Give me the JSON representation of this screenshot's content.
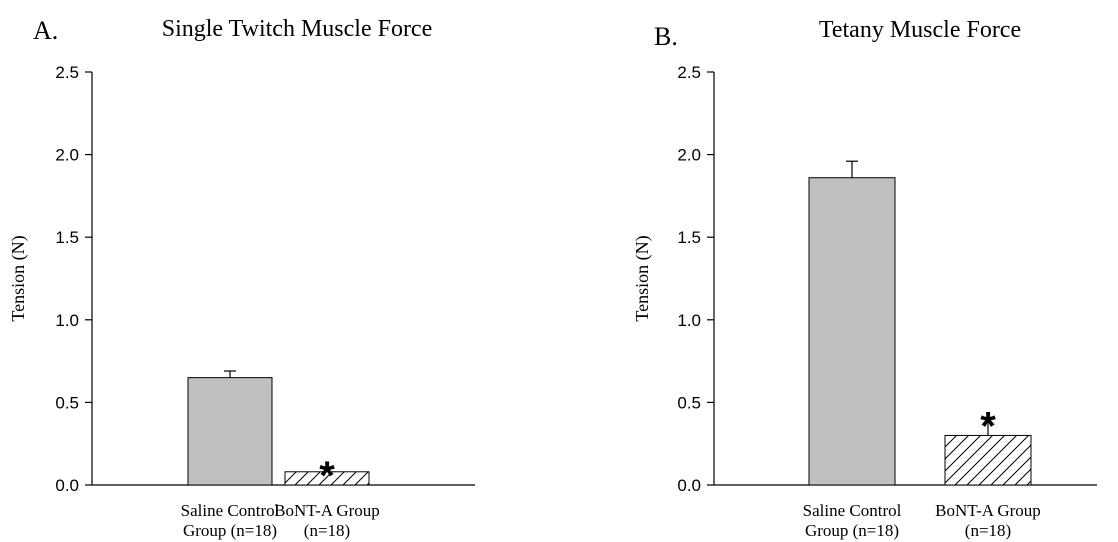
{
  "chart_data": [
    {
      "type": "bar",
      "panel_label": "A.",
      "title": "Single Twitch Muscle Force",
      "ylabel": "Tension (N)",
      "xlabel": "",
      "ylim": [
        0,
        2.5
      ],
      "yticks": [
        "0.0",
        "0.5",
        "1.0",
        "1.5",
        "2.0",
        "2.5"
      ],
      "grid": false,
      "categories": [
        [
          "Saline Control",
          "Group (n=18)"
        ],
        [
          "BoNT-A Group",
          "(n=18)"
        ]
      ],
      "values": [
        0.65,
        0.08
      ],
      "error": [
        0.04,
        0.03
      ],
      "fills": [
        "solid-gray",
        "hatched"
      ],
      "colors": {
        "bar": "#c0c0c0",
        "edge": "#000000"
      },
      "annotations": [
        {
          "category_index": 1,
          "text": "*"
        }
      ]
    },
    {
      "type": "bar",
      "panel_label": "B.",
      "title": "Tetany Muscle Force",
      "ylabel": "Tension (N)",
      "xlabel": "",
      "ylim": [
        0,
        2.5
      ],
      "yticks": [
        "0.0",
        "0.5",
        "1.0",
        "1.5",
        "2.0",
        "2.5"
      ],
      "grid": false,
      "categories": [
        [
          "Saline Control",
          "Group (n=18)"
        ],
        [
          "BoNT-A Group",
          "(n=18)"
        ]
      ],
      "values": [
        1.86,
        0.3
      ],
      "error": [
        0.1,
        0.11
      ],
      "fills": [
        "solid-gray",
        "hatched"
      ],
      "colors": {
        "bar": "#c0c0c0",
        "edge": "#000000"
      },
      "annotations": [
        {
          "category_index": 1,
          "text": "*"
        }
      ]
    }
  ]
}
